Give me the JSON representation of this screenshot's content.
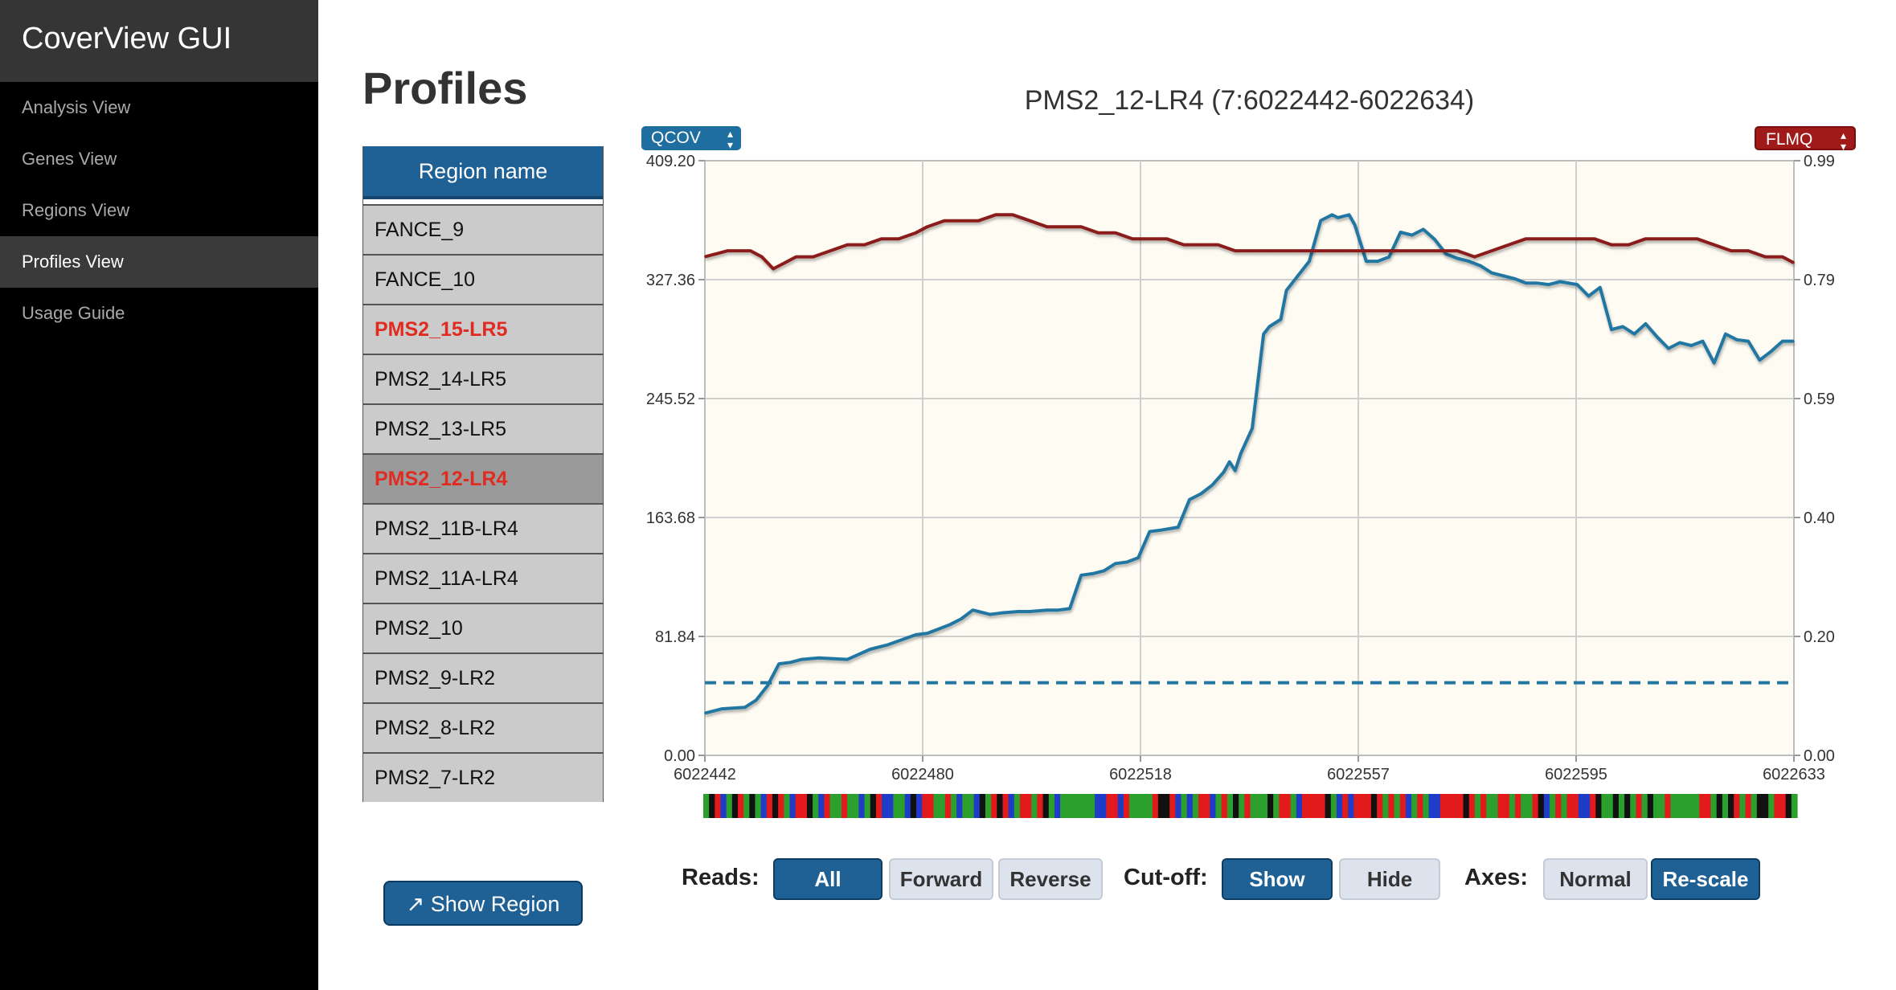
{
  "app": {
    "title": "CoverView GUI"
  },
  "nav": [
    {
      "label": "Analysis View",
      "active": false
    },
    {
      "label": "Genes View",
      "active": false
    },
    {
      "label": "Regions View",
      "active": false
    },
    {
      "label": "Profiles View",
      "active": true
    },
    {
      "label": "Usage Guide",
      "active": false
    }
  ],
  "page": {
    "title": "Profiles"
  },
  "regions": {
    "header": "Region name",
    "rows": [
      {
        "name": "FANCE_9",
        "flagged": false,
        "selected": false
      },
      {
        "name": "FANCE_10",
        "flagged": false,
        "selected": false
      },
      {
        "name": "PMS2_15-LR5",
        "flagged": true,
        "selected": false
      },
      {
        "name": "PMS2_14-LR5",
        "flagged": false,
        "selected": false
      },
      {
        "name": "PMS2_13-LR5",
        "flagged": false,
        "selected": false
      },
      {
        "name": "PMS2_12-LR4",
        "flagged": true,
        "selected": true
      },
      {
        "name": "PMS2_11B-LR4",
        "flagged": false,
        "selected": false
      },
      {
        "name": "PMS2_11A-LR4",
        "flagged": false,
        "selected": false
      },
      {
        "name": "PMS2_10",
        "flagged": false,
        "selected": false
      },
      {
        "name": "PMS2_9-LR2",
        "flagged": false,
        "selected": false
      },
      {
        "name": "PMS2_8-LR2",
        "flagged": false,
        "selected": false
      },
      {
        "name": "PMS2_7-LR2",
        "flagged": false,
        "selected": false
      }
    ]
  },
  "show_region": {
    "label": "↗ Show Region"
  },
  "chart_selects": {
    "left": "QCOV",
    "right": "FLMQ"
  },
  "colors": {
    "qcov": "#2177a2",
    "flmq": "#8b1a1a",
    "accent": "#1f6095",
    "plot_bg": "#fdfbf2"
  },
  "chart_data": {
    "type": "line",
    "title": "PMS2_12-LR4 (7:6022442-6022634)",
    "x_ticks": [
      "6022442",
      "6022480",
      "6022518",
      "6022557",
      "6022595",
      "6022633"
    ],
    "xlim": [
      6022442,
      6022633
    ],
    "y_left": {
      "label": "",
      "ticks": [
        "0.00",
        "81.84",
        "163.68",
        "245.52",
        "327.36",
        "409.20"
      ],
      "lim": [
        0,
        409.2
      ]
    },
    "y_right": {
      "label": "",
      "ticks": [
        "0.00",
        "0.20",
        "0.40",
        "0.59",
        "0.79",
        "0.99"
      ],
      "lim": [
        0,
        0.99
      ]
    },
    "cutoff": {
      "axis": "left",
      "value": 50
    },
    "series": [
      {
        "name": "QCOV",
        "axis": "left",
        "x": [
          6022442,
          6022445,
          6022449,
          6022451,
          6022453,
          6022455,
          6022457,
          6022459,
          6022462,
          6022467,
          6022471,
          6022474,
          6022479,
          6022481,
          6022483,
          6022485,
          6022487,
          6022489,
          6022492,
          6022494,
          6022497,
          6022499,
          6022502,
          6022504,
          6022506,
          6022508,
          6022510,
          6022512,
          6022514,
          6022516,
          6022518,
          6022520,
          6022522,
          6022525,
          6022527,
          6022529,
          6022531,
          6022533,
          6022534,
          6022535,
          6022536,
          6022538,
          6022540,
          6022541,
          6022543,
          6022544,
          6022546,
          6022548,
          6022550,
          6022552,
          6022553,
          6022555,
          6022556,
          6022558,
          6022560,
          6022562,
          6022564,
          6022566,
          6022568,
          6022570,
          6022572,
          6022574,
          6022576,
          6022578,
          6022580,
          6022582,
          6022584,
          6022586,
          6022588,
          6022590,
          6022592,
          6022595,
          6022597,
          6022599,
          6022601,
          6022603,
          6022605,
          6022607,
          6022609,
          6022611,
          6022613,
          6022615,
          6022617,
          6022619,
          6022621,
          6022623,
          6022625,
          6022627,
          6022629,
          6022631,
          6022633
        ],
        "y": [
          29,
          32,
          33,
          38,
          48,
          63,
          64,
          66,
          67,
          66,
          73,
          76,
          83,
          84,
          87,
          90,
          94,
          100,
          97,
          98,
          99,
          99,
          100,
          100,
          101,
          124,
          125,
          127,
          132,
          133,
          136,
          154,
          155,
          157,
          176,
          180,
          186,
          195,
          202,
          196,
          208,
          225,
          290,
          295,
          300,
          320,
          330,
          340,
          368,
          372,
          370,
          372,
          365,
          340,
          340,
          343,
          360,
          358,
          362,
          355,
          345,
          342,
          340,
          337,
          332,
          330,
          328,
          325,
          325,
          324,
          326,
          324,
          316,
          322,
          293,
          295,
          290,
          297,
          288,
          280,
          284,
          282,
          285,
          270,
          290,
          286,
          285,
          272,
          278,
          285,
          285
        ]
      },
      {
        "name": "FLMQ",
        "axis": "right",
        "x": [
          6022442,
          6022446,
          6022450,
          6022452,
          6022454,
          6022456,
          6022458,
          6022461,
          6022464,
          6022467,
          6022470,
          6022473,
          6022476,
          6022479,
          6022481,
          6022484,
          6022487,
          6022490,
          6022493,
          6022496,
          6022499,
          6022502,
          6022505,
          6022508,
          6022511,
          6022514,
          6022517,
          6022520,
          6022523,
          6022526,
          6022529,
          6022532,
          6022535,
          6022538,
          6022541,
          6022544,
          6022547,
          6022550,
          6022553,
          6022556,
          6022559,
          6022562,
          6022565,
          6022568,
          6022571,
          6022574,
          6022577,
          6022580,
          6022583,
          6022586,
          6022589,
          6022592,
          6022595,
          6022598,
          6022601,
          6022604,
          6022607,
          6022610,
          6022613,
          6022616,
          6022619,
          6022622,
          6022625,
          6022628,
          6022631,
          6022633
        ],
        "y": [
          0.83,
          0.84,
          0.84,
          0.83,
          0.81,
          0.82,
          0.83,
          0.83,
          0.84,
          0.85,
          0.85,
          0.86,
          0.86,
          0.87,
          0.88,
          0.89,
          0.89,
          0.89,
          0.9,
          0.9,
          0.89,
          0.88,
          0.88,
          0.88,
          0.87,
          0.87,
          0.86,
          0.86,
          0.86,
          0.85,
          0.85,
          0.85,
          0.84,
          0.84,
          0.84,
          0.84,
          0.84,
          0.84,
          0.84,
          0.84,
          0.84,
          0.84,
          0.84,
          0.84,
          0.84,
          0.84,
          0.83,
          0.84,
          0.85,
          0.86,
          0.86,
          0.86,
          0.86,
          0.86,
          0.85,
          0.85,
          0.86,
          0.86,
          0.86,
          0.86,
          0.85,
          0.84,
          0.84,
          0.83,
          0.83,
          0.82
        ]
      }
    ],
    "grid": true
  },
  "controls": {
    "reads": {
      "label": "Reads:",
      "buttons": [
        {
          "label": "All",
          "on": true
        },
        {
          "label": "Forward",
          "on": false
        },
        {
          "label": "Reverse",
          "on": false
        }
      ]
    },
    "cutoff": {
      "label": "Cut-off:",
      "buttons": [
        {
          "label": "Show",
          "on": true
        },
        {
          "label": "Hide",
          "on": false
        }
      ]
    },
    "axes": {
      "label": "Axes:",
      "buttons": [
        {
          "label": "Normal",
          "on": false
        },
        {
          "label": "Re-scale",
          "on": true
        }
      ]
    }
  }
}
